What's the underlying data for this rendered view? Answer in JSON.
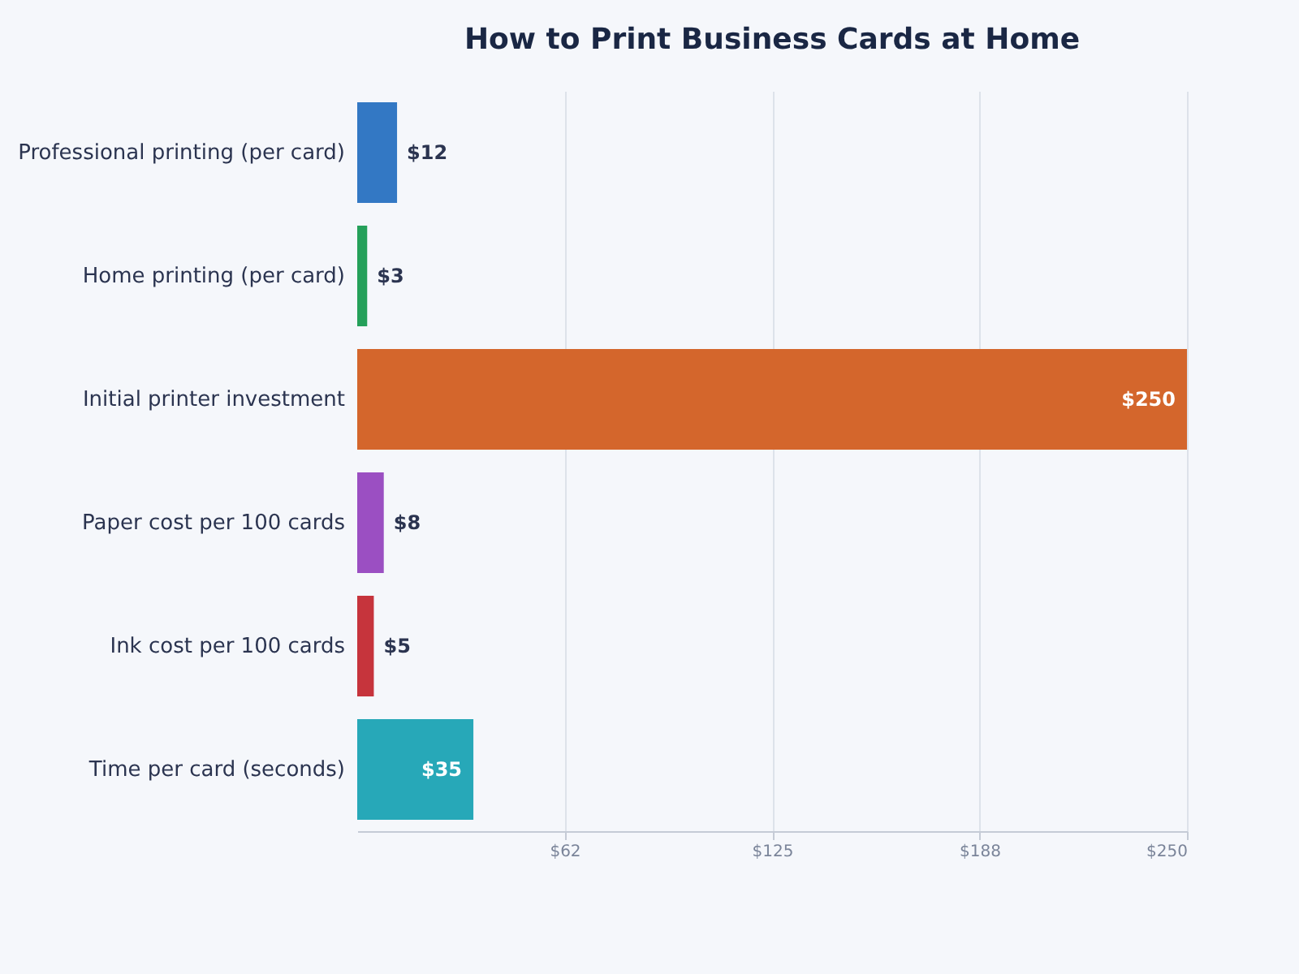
{
  "chart_data": {
    "type": "bar",
    "orientation": "horizontal",
    "title": "How to Print Business Cards at Home",
    "categories": [
      "Professional printing (per card)",
      "Home printing (per card)",
      "Initial printer investment",
      "Paper cost per 100 cards",
      "Ink cost per 100 cards",
      "Time per card (seconds)"
    ],
    "values": [
      12,
      3,
      250,
      8,
      5,
      35
    ],
    "colors": [
      "#3378c4",
      "#25a05a",
      "#d4662c",
      "#9b4fc2",
      "#c6343c",
      "#27a8b8"
    ],
    "value_labels": [
      "$12",
      "$3",
      "$250",
      "$8",
      "$5",
      "$35"
    ],
    "xlim": [
      0,
      250
    ],
    "xticks": [
      {
        "value": 62.5,
        "label": "$62"
      },
      {
        "value": 125,
        "label": "$125"
      },
      {
        "value": 187.5,
        "label": "$188"
      },
      {
        "value": 250,
        "label": "$250"
      }
    ],
    "grid": "x"
  }
}
